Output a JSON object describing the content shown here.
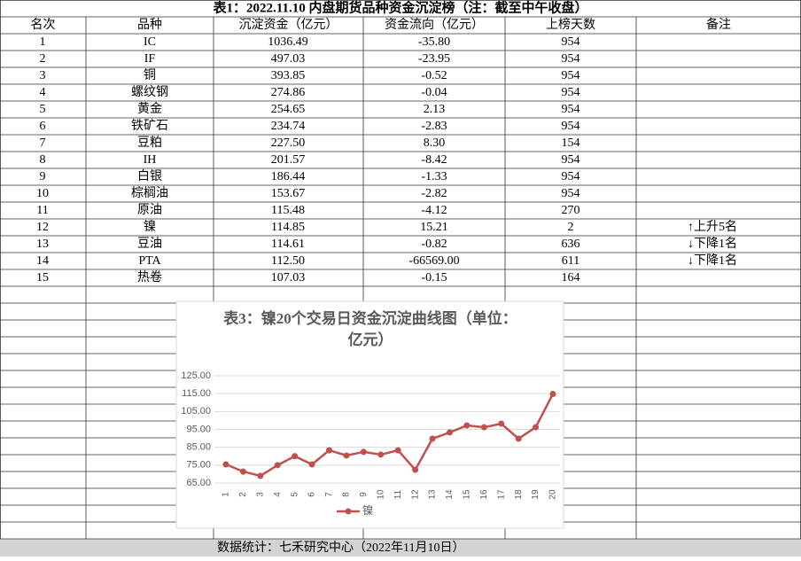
{
  "table": {
    "title": "表1：2022.11.10 内盘期货品种资金沉淀榜（注：截至中午收盘）",
    "headers": [
      "名次",
      "品种",
      "沉淀资金（亿元）",
      "资金流向（亿元）",
      "上榜天数",
      "备注"
    ],
    "rows": [
      [
        "1",
        "IC",
        "1036.49",
        "-35.80",
        "954",
        ""
      ],
      [
        "2",
        "IF",
        "497.03",
        "-23.95",
        "954",
        ""
      ],
      [
        "3",
        "铜",
        "393.85",
        "-0.52",
        "954",
        ""
      ],
      [
        "4",
        "螺纹钢",
        "274.86",
        "-0.04",
        "954",
        ""
      ],
      [
        "5",
        "黄金",
        "254.65",
        "2.13",
        "954",
        ""
      ],
      [
        "6",
        "铁矿石",
        "234.74",
        "-2.83",
        "954",
        ""
      ],
      [
        "7",
        "豆粕",
        "227.50",
        "8.30",
        "154",
        ""
      ],
      [
        "8",
        "IH",
        "201.57",
        "-8.42",
        "954",
        ""
      ],
      [
        "9",
        "白银",
        "186.44",
        "-1.33",
        "954",
        ""
      ],
      [
        "10",
        "棕榈油",
        "153.67",
        "-2.82",
        "954",
        ""
      ],
      [
        "11",
        "原油",
        "115.48",
        "-4.12",
        "270",
        ""
      ],
      [
        "12",
        "镍",
        "114.85",
        "15.21",
        "2",
        "↑上升5名"
      ],
      [
        "13",
        "豆油",
        "114.61",
        "-0.82",
        "636",
        "↓下降1名"
      ],
      [
        "14",
        "PTA",
        "112.50",
        "-66569.00",
        "611",
        "↓下降1名"
      ],
      [
        "15",
        "热卷",
        "107.03",
        "-0.15",
        "164",
        ""
      ]
    ],
    "footer": "数据统计：七禾研究中心（2022年11月10日）"
  },
  "chart_data": {
    "type": "line",
    "title": "表3：镍20个交易日资金沉淀曲线图（单位：亿元）",
    "categories": [
      "1",
      "2",
      "3",
      "4",
      "5",
      "6",
      "7",
      "8",
      "9",
      "10",
      "11",
      "12",
      "13",
      "14",
      "15",
      "16",
      "17",
      "18",
      "19",
      "20"
    ],
    "series": [
      {
        "name": "镍",
        "color": "#c0504d",
        "values": [
          75.4,
          71.4,
          69.0,
          75.0,
          80.0,
          75.4,
          83.3,
          80.4,
          82.4,
          80.9,
          83.3,
          72.4,
          89.8,
          93.3,
          97.2,
          96.2,
          98.2,
          89.8,
          96.2,
          114.85
        ]
      }
    ],
    "ylim": [
      65,
      125
    ],
    "yticks": [
      {
        "value": 65,
        "label": "65.00"
      },
      {
        "value": 75,
        "label": "75.00"
      },
      {
        "value": 85,
        "label": "85.00"
      },
      {
        "value": 95,
        "label": "95.00"
      },
      {
        "value": 105,
        "label": "105.00"
      },
      {
        "value": 115,
        "label": "115.00"
      },
      {
        "value": 125,
        "label": "125.00"
      }
    ],
    "grid": true,
    "legend": "bottom"
  }
}
